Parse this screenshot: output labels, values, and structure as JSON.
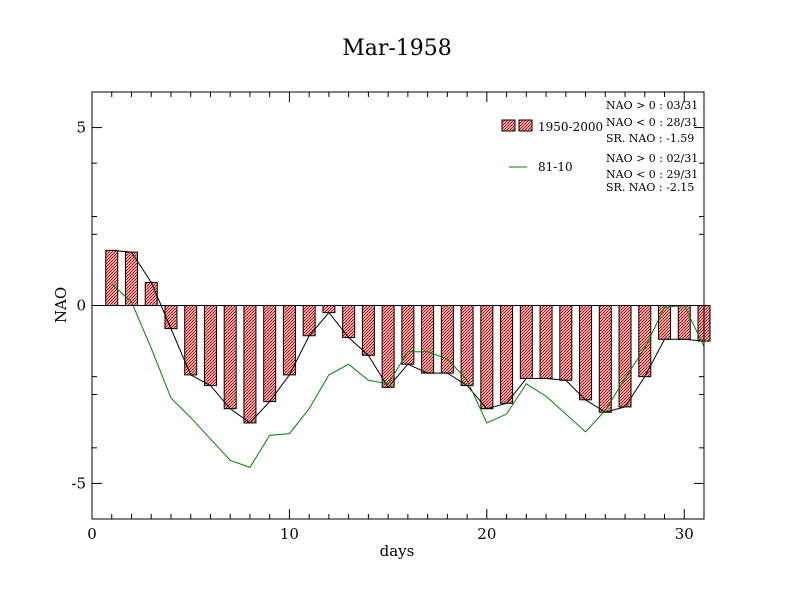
{
  "chart_data": {
    "type": "bar",
    "title": "Mar-1958",
    "xlabel": "days",
    "ylabel": "NAO",
    "xlim": [
      0,
      31
    ],
    "ylim": [
      -6,
      6
    ],
    "x_ticks": [
      0,
      10,
      20,
      30
    ],
    "y_ticks": [
      5,
      0,
      -5
    ],
    "x_tick_labels": [
      "0",
      "10",
      "20",
      "30"
    ],
    "y_tick_labels": [
      "5",
      "0",
      "-5"
    ],
    "grid": false,
    "legend_position": "top-right",
    "series": [
      {
        "name": "1950-2000",
        "style": "bar+line",
        "color": "#e87b7b",
        "line_color": "#000000",
        "x": [
          1,
          2,
          3,
          4,
          5,
          6,
          7,
          8,
          9,
          10,
          11,
          12,
          13,
          14,
          15,
          16,
          17,
          18,
          19,
          20,
          21,
          22,
          23,
          24,
          25,
          26,
          27,
          28,
          29,
          30,
          31
        ],
        "values": [
          1.55,
          1.5,
          0.65,
          -0.65,
          -1.95,
          -2.25,
          -2.9,
          -3.3,
          -2.7,
          -1.95,
          -0.85,
          -0.2,
          -0.9,
          -1.4,
          -2.3,
          -1.65,
          -1.9,
          -1.9,
          -2.25,
          -2.9,
          -2.75,
          -2.05,
          -2.05,
          -2.1,
          -2.65,
          -3.0,
          -2.85,
          -2.0,
          -0.95,
          -0.95,
          -1.0
        ]
      },
      {
        "name": "81-10",
        "style": "line",
        "color": "#008000",
        "x": [
          1,
          2,
          3,
          4,
          5,
          6,
          7,
          8,
          9,
          10,
          11,
          12,
          13,
          14,
          15,
          16,
          17,
          18,
          19,
          20,
          21,
          22,
          23,
          24,
          25,
          26,
          27,
          28,
          29,
          30,
          31
        ],
        "values": [
          0.6,
          0.1,
          -1.2,
          -2.6,
          -3.15,
          -3.75,
          -4.35,
          -4.55,
          -3.65,
          -3.6,
          -2.9,
          -1.95,
          -1.65,
          -2.1,
          -2.2,
          -1.3,
          -1.3,
          -1.5,
          -2.1,
          -3.3,
          -3.05,
          -2.2,
          -2.55,
          -3.05,
          -3.55,
          -2.95,
          -2.05,
          -1.2,
          -0.05,
          0.0,
          -1.15
        ]
      }
    ],
    "stats": [
      [
        "NAO > 0 : 03/31",
        "NAO < 0 : 28/31",
        "SR. NAO : -1.59"
      ],
      [
        "NAO > 0 : 02/31",
        "NAO < 0 : 29/31",
        "SR. NAO : -2.15"
      ]
    ]
  }
}
